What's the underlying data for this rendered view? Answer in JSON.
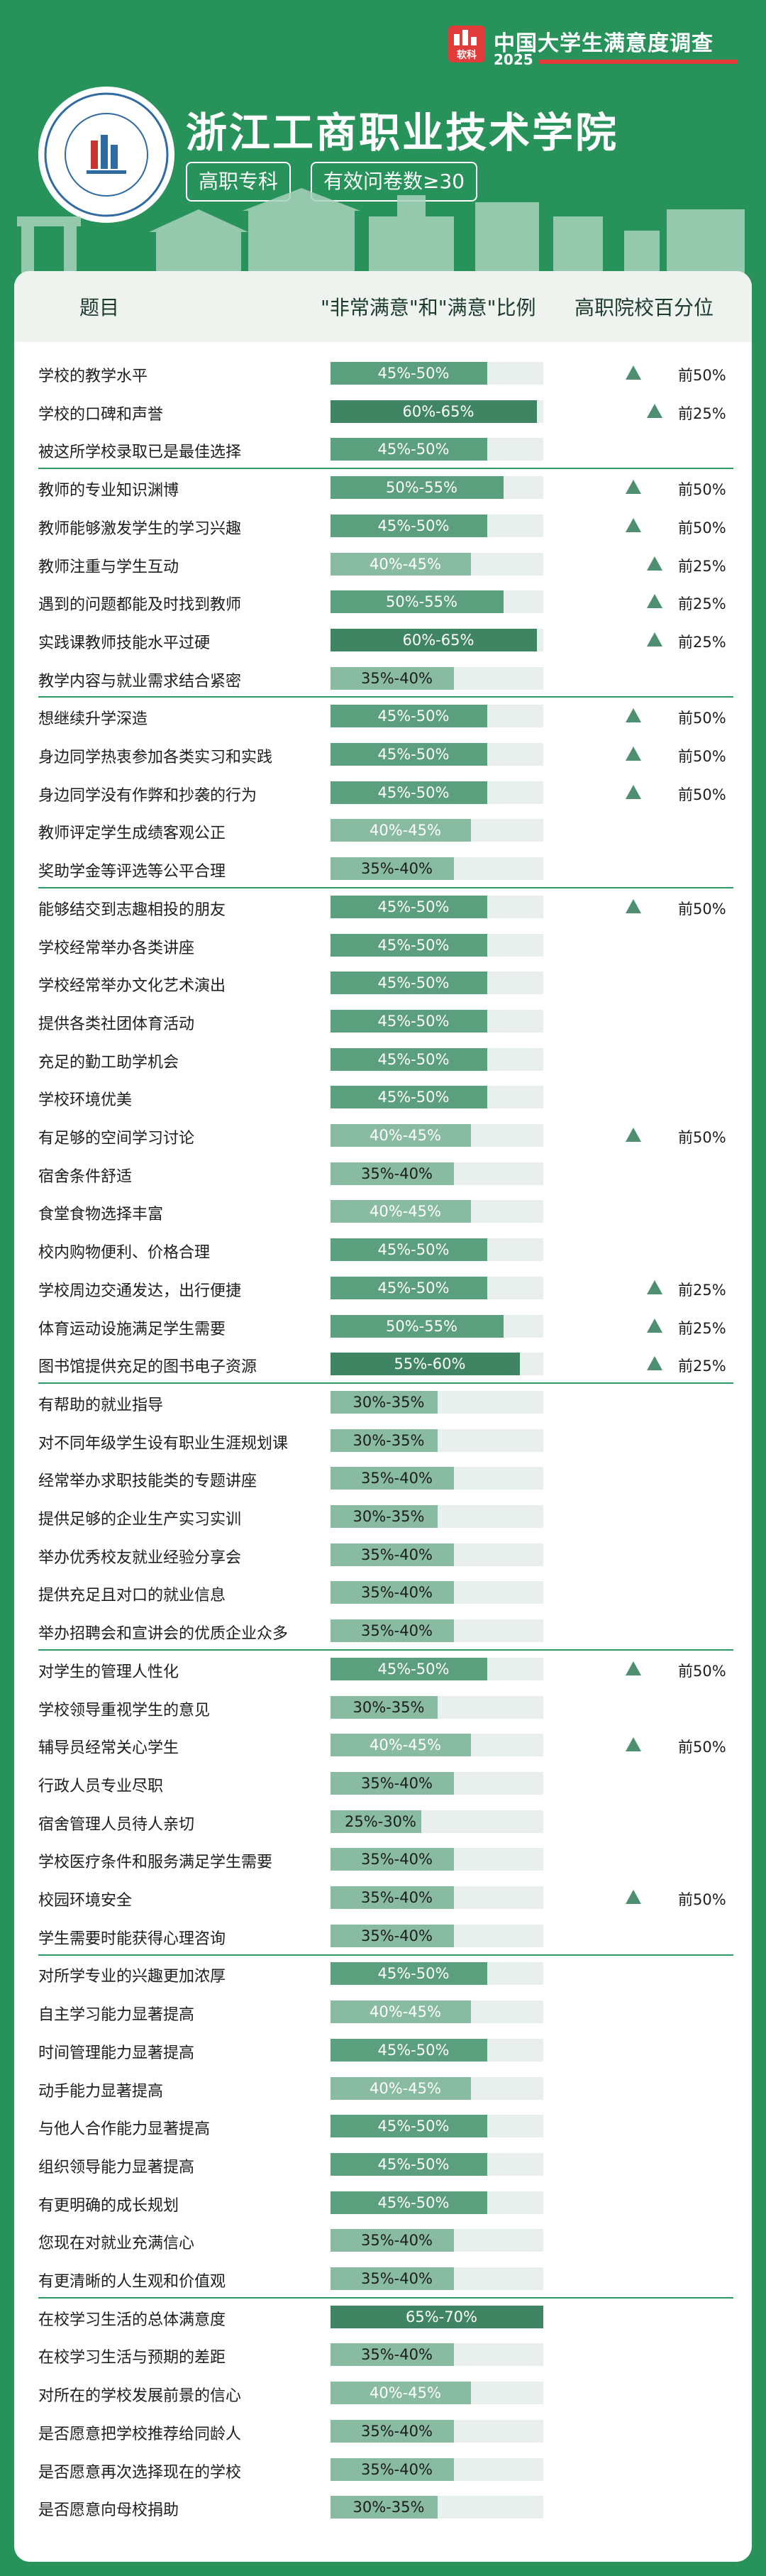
{
  "survey": {
    "logo_text": "软科",
    "title": "中国大学生满意度调查",
    "year": "2025"
  },
  "school": {
    "name": "浙江工商职业技术学院",
    "type_tag": "高职专科",
    "sample_tag": "有效问卷数≥30"
  },
  "table_headers": {
    "question": "题目",
    "ratio": "\"非常满意\"和\"满意\"比例",
    "percentile": "高职院校百分位"
  },
  "colors": {
    "background": "#27925a",
    "bar_light": "#88bba1",
    "bar_mid": "#5c9f7e",
    "bar_dark": "#3f8563",
    "track": "#e9efec",
    "triangle": "#4e8f71",
    "brand_red": "#e23b3b"
  },
  "chart_data": {
    "type": "bar",
    "xlim": [
      0,
      100
    ],
    "groups": [
      [
        {
          "label": "学校的教学水平",
          "range": "45%-50%",
          "value": 47.5,
          "percentile": "前50%"
        },
        {
          "label": "学校的口碑和声誉",
          "range": "60%-65%",
          "value": 62.5,
          "percentile": "前25%"
        },
        {
          "label": "被这所学校录取已是最佳选择",
          "range": "45%-50%",
          "value": 47.5,
          "percentile": ""
        }
      ],
      [
        {
          "label": "教师的专业知识渊博",
          "range": "50%-55%",
          "value": 52.5,
          "percentile": "前50%"
        },
        {
          "label": "教师能够激发学生的学习兴趣",
          "range": "45%-50%",
          "value": 47.5,
          "percentile": "前50%"
        },
        {
          "label": "教师注重与学生互动",
          "range": "40%-45%",
          "value": 42.5,
          "percentile": "前25%"
        },
        {
          "label": "遇到的问题都能及时找到教师",
          "range": "50%-55%",
          "value": 52.5,
          "percentile": "前25%"
        },
        {
          "label": "实践课教师技能水平过硬",
          "range": "60%-65%",
          "value": 62.5,
          "percentile": "前25%"
        },
        {
          "label": "教学内容与就业需求结合紧密",
          "range": "35%-40%",
          "value": 37.5,
          "percentile": ""
        }
      ],
      [
        {
          "label": "想继续升学深造",
          "range": "45%-50%",
          "value": 47.5,
          "percentile": "前50%"
        },
        {
          "label": "身边同学热衷参加各类实习和实践",
          "range": "45%-50%",
          "value": 47.5,
          "percentile": "前50%"
        },
        {
          "label": "身边同学没有作弊和抄袭的行为",
          "range": "45%-50%",
          "value": 47.5,
          "percentile": "前50%"
        },
        {
          "label": "教师评定学生成绩客观公正",
          "range": "40%-45%",
          "value": 42.5,
          "percentile": ""
        },
        {
          "label": "奖助学金等评选等公平合理",
          "range": "35%-40%",
          "value": 37.5,
          "percentile": ""
        }
      ],
      [
        {
          "label": "能够结交到志趣相投的朋友",
          "range": "45%-50%",
          "value": 47.5,
          "percentile": "前50%"
        },
        {
          "label": "学校经常举办各类讲座",
          "range": "45%-50%",
          "value": 47.5,
          "percentile": ""
        },
        {
          "label": "学校经常举办文化艺术演出",
          "range": "45%-50%",
          "value": 47.5,
          "percentile": ""
        },
        {
          "label": "提供各类社团体育活动",
          "range": "45%-50%",
          "value": 47.5,
          "percentile": ""
        },
        {
          "label": "充足的勤工助学机会",
          "range": "45%-50%",
          "value": 47.5,
          "percentile": ""
        },
        {
          "label": "学校环境优美",
          "range": "45%-50%",
          "value": 47.5,
          "percentile": ""
        },
        {
          "label": "有足够的空间学习讨论",
          "range": "40%-45%",
          "value": 42.5,
          "percentile": "前50%"
        },
        {
          "label": "宿舍条件舒适",
          "range": "35%-40%",
          "value": 37.5,
          "percentile": ""
        },
        {
          "label": "食堂食物选择丰富",
          "range": "40%-45%",
          "value": 42.5,
          "percentile": ""
        },
        {
          "label": "校内购物便利、价格合理",
          "range": "45%-50%",
          "value": 47.5,
          "percentile": ""
        },
        {
          "label": "学校周边交通发达，出行便捷",
          "range": "45%-50%",
          "value": 47.5,
          "percentile": "前25%"
        },
        {
          "label": "体育运动设施满足学生需要",
          "range": "50%-55%",
          "value": 52.5,
          "percentile": "前25%"
        },
        {
          "label": "图书馆提供充足的图书电子资源",
          "range": "55%-60%",
          "value": 57.5,
          "percentile": "前25%"
        }
      ],
      [
        {
          "label": "有帮助的就业指导",
          "range": "30%-35%",
          "value": 32.5,
          "percentile": ""
        },
        {
          "label": "对不同年级学生设有职业生涯规划课",
          "range": "30%-35%",
          "value": 32.5,
          "percentile": ""
        },
        {
          "label": "经常举办求职技能类的专题讲座",
          "range": "35%-40%",
          "value": 37.5,
          "percentile": ""
        },
        {
          "label": "提供足够的企业生产实习实训",
          "range": "30%-35%",
          "value": 32.5,
          "percentile": ""
        },
        {
          "label": "举办优秀校友就业经验分享会",
          "range": "35%-40%",
          "value": 37.5,
          "percentile": ""
        },
        {
          "label": "提供充足且对口的就业信息",
          "range": "35%-40%",
          "value": 37.5,
          "percentile": ""
        },
        {
          "label": "举办招聘会和宣讲会的优质企业众多",
          "range": "35%-40%",
          "value": 37.5,
          "percentile": ""
        }
      ],
      [
        {
          "label": "对学生的管理人性化",
          "range": "45%-50%",
          "value": 47.5,
          "percentile": "前50%"
        },
        {
          "label": "学校领导重视学生的意见",
          "range": "30%-35%",
          "value": 32.5,
          "percentile": ""
        },
        {
          "label": "辅导员经常关心学生",
          "range": "40%-45%",
          "value": 42.5,
          "percentile": "前50%"
        },
        {
          "label": "行政人员专业尽职",
          "range": "35%-40%",
          "value": 37.5,
          "percentile": ""
        },
        {
          "label": "宿舍管理人员待人亲切",
          "range": "25%-30%",
          "value": 27.5,
          "percentile": ""
        },
        {
          "label": "学校医疗条件和服务满足学生需要",
          "range": "35%-40%",
          "value": 37.5,
          "percentile": ""
        },
        {
          "label": "校园环境安全",
          "range": "35%-40%",
          "value": 37.5,
          "percentile": "前50%"
        },
        {
          "label": "学生需要时能获得心理咨询",
          "range": "35%-40%",
          "value": 37.5,
          "percentile": ""
        }
      ],
      [
        {
          "label": "对所学专业的兴趣更加浓厚",
          "range": "45%-50%",
          "value": 47.5,
          "percentile": ""
        },
        {
          "label": "自主学习能力显著提高",
          "range": "40%-45%",
          "value": 42.5,
          "percentile": ""
        },
        {
          "label": "时间管理能力显著提高",
          "range": "45%-50%",
          "value": 47.5,
          "percentile": ""
        },
        {
          "label": "动手能力显著提高",
          "range": "40%-45%",
          "value": 42.5,
          "percentile": ""
        },
        {
          "label": "与他人合作能力显著提高",
          "range": "45%-50%",
          "value": 47.5,
          "percentile": ""
        },
        {
          "label": "组织领导能力显著提高",
          "range": "45%-50%",
          "value": 47.5,
          "percentile": ""
        },
        {
          "label": "有更明确的成长规划",
          "range": "45%-50%",
          "value": 47.5,
          "percentile": ""
        },
        {
          "label": "您现在对就业充满信心",
          "range": "35%-40%",
          "value": 37.5,
          "percentile": ""
        },
        {
          "label": "有更清晰的人生观和价值观",
          "range": "35%-40%",
          "value": 37.5,
          "percentile": ""
        }
      ],
      [
        {
          "label": "在校学习生活的总体满意度",
          "range": "65%-70%",
          "value": 67.5,
          "percentile": ""
        },
        {
          "label": "在校学习生活与预期的差距",
          "range": "35%-40%",
          "value": 37.5,
          "percentile": ""
        },
        {
          "label": "对所在的学校发展前景的信心",
          "range": "40%-45%",
          "value": 42.5,
          "percentile": ""
        },
        {
          "label": "是否愿意把学校推荐给同龄人",
          "range": "35%-40%",
          "value": 37.5,
          "percentile": ""
        },
        {
          "label": "是否愿意再次选择现在的学校",
          "range": "35%-40%",
          "value": 37.5,
          "percentile": ""
        },
        {
          "label": "是否愿意向母校捐助",
          "range": "30%-35%",
          "value": 32.5,
          "percentile": ""
        }
      ]
    ]
  }
}
